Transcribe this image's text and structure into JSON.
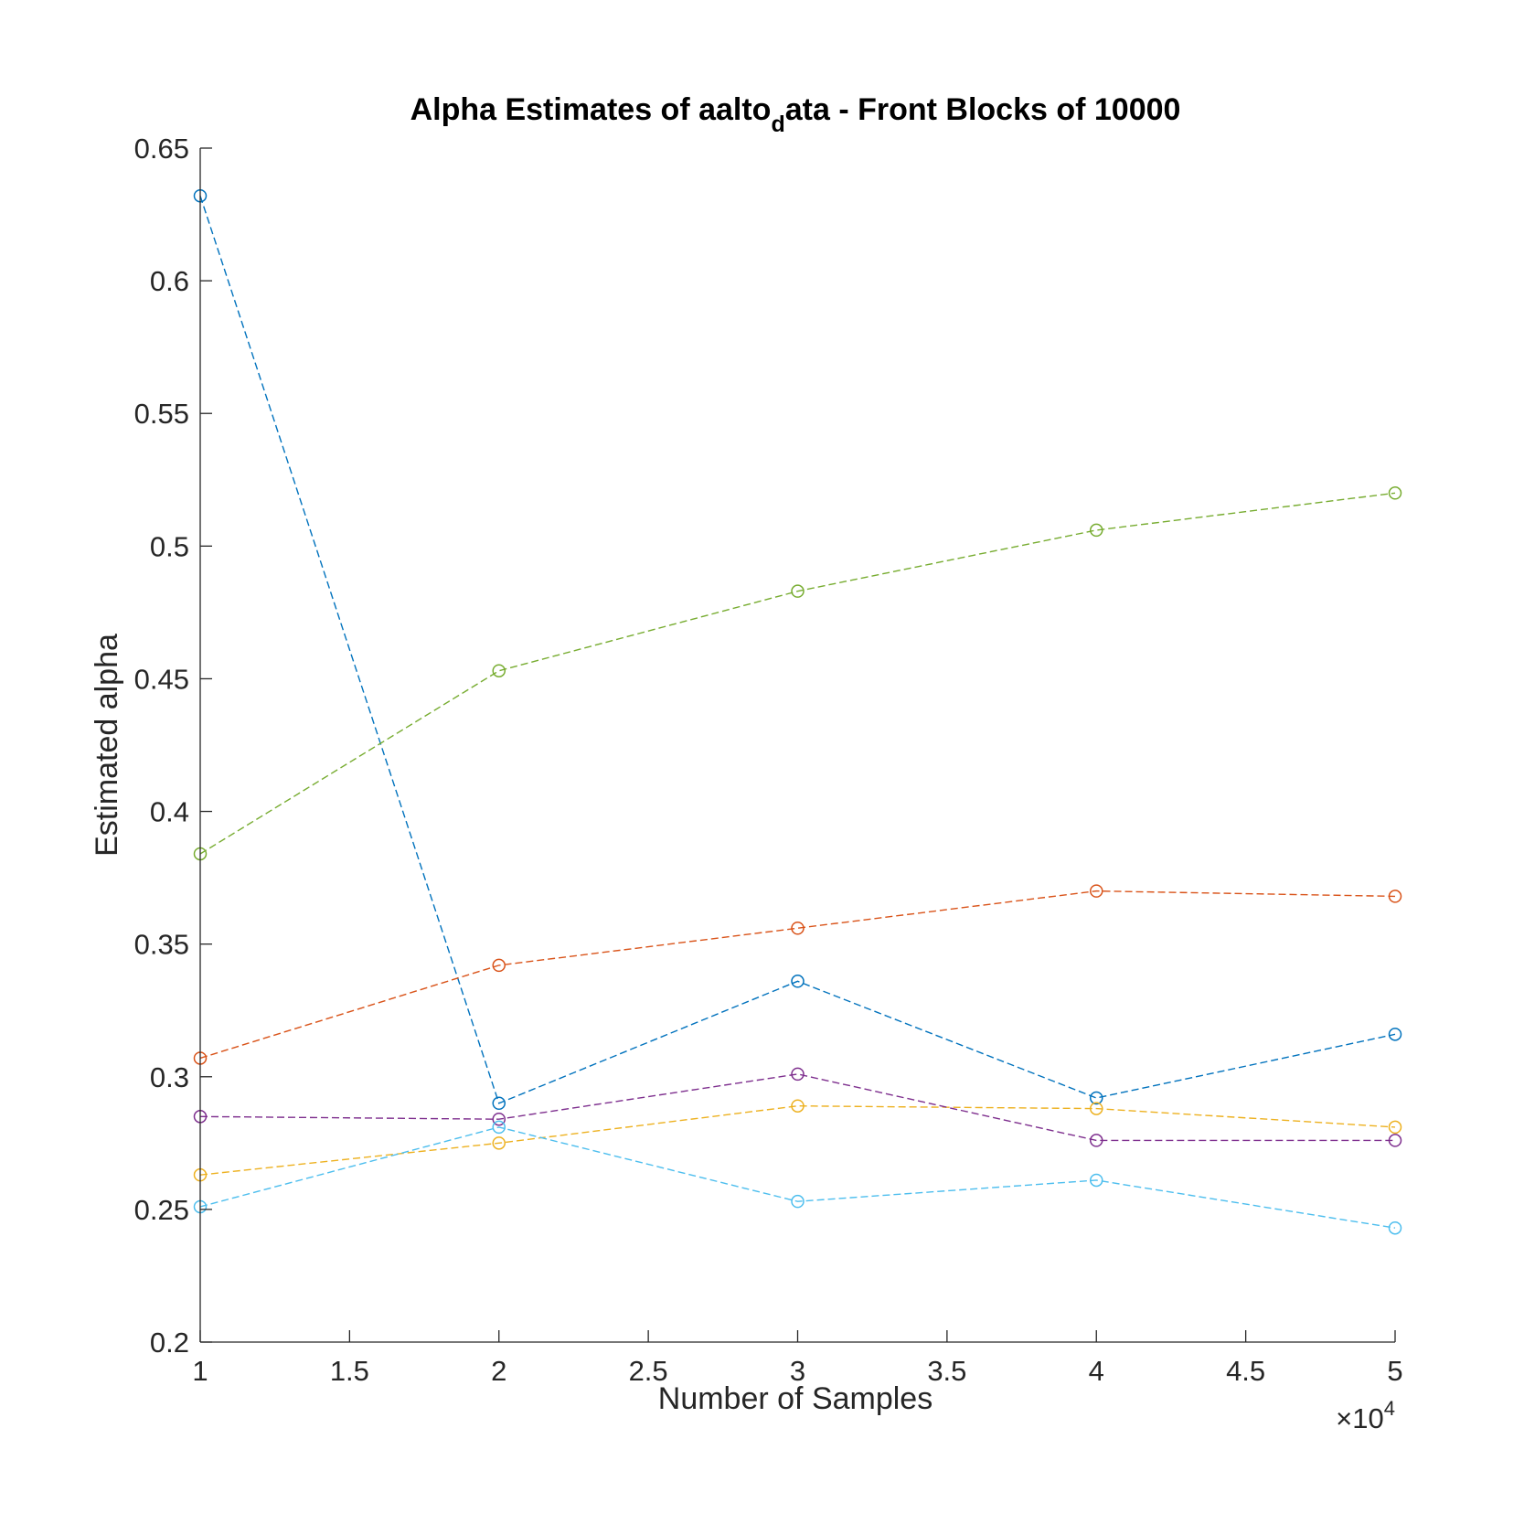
{
  "chart_data": {
    "type": "line",
    "title": {
      "before": "Alpha Estimates of aalto",
      "subscript": "d",
      "after": "ata - Front Blocks of 10000"
    },
    "xlabel": "Number of Samples",
    "ylabel": "Estimated alpha",
    "x_multiplier": {
      "base": "×10",
      "exponent": "4"
    },
    "xlim": [
      1,
      5
    ],
    "ylim": [
      0.2,
      0.65
    ],
    "xticks": [
      1,
      1.5,
      2,
      2.5,
      3,
      3.5,
      4,
      4.5,
      5
    ],
    "xtick_labels": [
      "1",
      "1.5",
      "2",
      "2.5",
      "3",
      "3.5",
      "4",
      "4.5",
      "5"
    ],
    "yticks": [
      0.2,
      0.25,
      0.3,
      0.35,
      0.4,
      0.45,
      0.5,
      0.55,
      0.6,
      0.65
    ],
    "ytick_labels": [
      "0.2",
      "0.25",
      "0.3",
      "0.35",
      "0.4",
      "0.45",
      "0.5",
      "0.55",
      "0.6",
      "0.65"
    ],
    "grid": false,
    "legend": "none",
    "line_style": "dashed",
    "marker": "circle",
    "x": [
      1,
      2,
      3,
      4,
      5
    ],
    "series": [
      {
        "color": "#0072BD",
        "values": [
          0.632,
          0.29,
          0.336,
          0.292,
          0.316
        ]
      },
      {
        "color": "#D95319",
        "values": [
          0.307,
          0.342,
          0.356,
          0.37,
          0.368
        ]
      },
      {
        "color": "#EDB120",
        "values": [
          0.263,
          0.275,
          0.289,
          0.288,
          0.281
        ]
      },
      {
        "color": "#7E2F8E",
        "values": [
          0.285,
          0.284,
          0.301,
          0.276,
          0.276
        ]
      },
      {
        "color": "#77AC30",
        "values": [
          0.384,
          0.453,
          0.483,
          0.506,
          0.52
        ]
      },
      {
        "color": "#4DBEEE",
        "values": [
          0.251,
          0.281,
          0.253,
          0.261,
          0.243
        ]
      }
    ]
  }
}
